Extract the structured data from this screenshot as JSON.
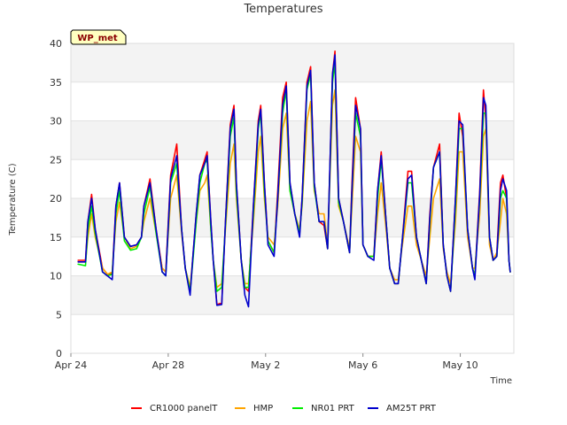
{
  "chart_data": {
    "type": "line",
    "title": "Temperatures",
    "xlabel": "Time",
    "ylabel": "Temperature (C)",
    "badge": "WP_met",
    "xlim": [
      0,
      18.2
    ],
    "ylim": [
      0,
      40
    ],
    "y_ticks": [
      0,
      5,
      10,
      15,
      20,
      25,
      30,
      35,
      40
    ],
    "x_ticks": [
      {
        "day": 0,
        "label": "Apr 24"
      },
      {
        "day": 4,
        "label": "Apr 28"
      },
      {
        "day": 8,
        "label": "May 2"
      },
      {
        "day": 12,
        "label": "May 6"
      },
      {
        "day": 16,
        "label": "May 10"
      }
    ],
    "grid": true,
    "legend_position": "bottom",
    "series": [
      {
        "name": "CR1000 panelT",
        "color": "#ff0000",
        "x": [
          0.3,
          0.6,
          0.7,
          0.85,
          1.0,
          1.3,
          1.5,
          1.7,
          1.85,
          2.0,
          2.2,
          2.45,
          2.7,
          2.9,
          3.0,
          3.25,
          3.5,
          3.75,
          3.9,
          4.1,
          4.35,
          4.55,
          4.7,
          4.9,
          5.0,
          5.15,
          5.3,
          5.5,
          5.6,
          5.75,
          5.85,
          6.0,
          6.2,
          6.35,
          6.55,
          6.7,
          6.8,
          7.0,
          7.15,
          7.3,
          7.5,
          7.7,
          7.8,
          7.95,
          8.1,
          8.35,
          8.5,
          8.7,
          8.85,
          9.0,
          9.2,
          9.4,
          9.5,
          9.7,
          9.85,
          10.0,
          10.2,
          10.4,
          10.55,
          10.75,
          10.85,
          11.0,
          11.2,
          11.45,
          11.55,
          11.7,
          11.9,
          12.0,
          12.2,
          12.45,
          12.6,
          12.75,
          12.95,
          13.1,
          13.3,
          13.45,
          13.6,
          13.85,
          14.0,
          14.2,
          14.4,
          14.6,
          14.75,
          14.9,
          15.15,
          15.3,
          15.45,
          15.6,
          15.8,
          15.95,
          16.1,
          16.3,
          16.5,
          16.6,
          16.8,
          16.95,
          17.05,
          17.2,
          17.35,
          17.5,
          17.65,
          17.75,
          17.9,
          18.0,
          18.05
        ],
        "values": [
          12,
          12,
          17,
          20.5,
          16,
          11,
          10.2,
          10.3,
          19,
          22,
          15,
          13.8,
          14,
          15,
          19,
          22.5,
          16,
          11,
          10.5,
          23,
          27,
          16,
          11,
          8,
          12,
          18,
          23,
          25,
          26,
          17,
          12,
          6.3,
          6.5,
          17,
          29.5,
          32,
          22,
          12,
          8.5,
          8,
          19,
          30,
          32,
          22,
          14.5,
          13,
          21,
          33,
          35,
          22,
          18,
          15.5,
          20,
          35,
          37,
          22,
          17,
          16.5,
          13.5,
          36,
          39,
          20,
          17,
          13,
          22,
          33,
          29,
          14,
          12.5,
          12.5,
          21,
          26,
          17,
          11,
          9,
          9,
          14,
          23.5,
          23.5,
          15,
          12,
          9,
          18,
          24,
          27,
          14,
          10,
          8,
          20,
          31,
          28,
          16,
          11,
          10,
          21,
          34,
          30,
          15,
          12,
          13,
          22,
          23,
          20,
          12,
          10.5
        ]
      },
      {
        "name": "HMP",
        "color": "#ffa500",
        "x": [
          0.3,
          0.6,
          0.7,
          0.85,
          1.0,
          1.3,
          1.5,
          1.7,
          1.85,
          2.0,
          2.2,
          2.45,
          2.7,
          2.9,
          3.0,
          3.25,
          3.5,
          3.75,
          3.9,
          4.1,
          4.35,
          4.55,
          4.7,
          4.9,
          5.0,
          5.15,
          5.3,
          5.5,
          5.6,
          5.75,
          5.85,
          6.0,
          6.2,
          6.35,
          6.55,
          6.7,
          6.8,
          7.0,
          7.15,
          7.3,
          7.5,
          7.7,
          7.8,
          7.95,
          8.1,
          8.35,
          8.5,
          8.7,
          8.85,
          9.0,
          9.2,
          9.4,
          9.5,
          9.7,
          9.85,
          10.0,
          10.2,
          10.4,
          10.55,
          10.75,
          10.85,
          11.0,
          11.2,
          11.45,
          11.55,
          11.7,
          11.9,
          12.0,
          12.2,
          12.45,
          12.6,
          12.75,
          12.95,
          13.1,
          13.3,
          13.45,
          13.6,
          13.85,
          14.0,
          14.2,
          14.4,
          14.6,
          14.75,
          14.9,
          15.15,
          15.3,
          15.45,
          15.6,
          15.8,
          15.95,
          16.1,
          16.3,
          16.5,
          16.6,
          16.8,
          16.95,
          17.05,
          17.2,
          17.35,
          17.5,
          17.65,
          17.75,
          17.9,
          18.0,
          18.05
        ],
        "values": [
          11.8,
          11.8,
          15,
          18,
          15,
          11,
          10.2,
          10.5,
          17,
          19.5,
          15,
          13.5,
          13.8,
          15,
          17,
          20,
          15.5,
          11,
          10.5,
          20,
          23,
          15.5,
          11,
          8.5,
          12,
          17,
          21,
          22,
          23,
          16,
          12,
          8.5,
          9,
          16,
          24.5,
          27,
          20,
          12,
          9,
          9,
          17,
          26,
          28,
          20,
          15,
          14,
          19,
          29,
          31,
          21,
          18,
          16,
          19,
          30,
          32.5,
          21,
          18,
          18,
          14,
          32,
          34,
          19,
          17,
          13.5,
          19,
          28,
          26,
          14,
          12.5,
          12.5,
          18,
          22,
          16,
          11,
          9.5,
          9.5,
          13.5,
          19,
          19,
          14,
          12,
          10,
          15,
          20,
          22.5,
          13.5,
          10.5,
          9,
          17,
          26,
          26,
          15,
          11,
          11,
          18,
          28,
          29,
          14,
          12,
          13,
          17,
          20,
          18,
          12,
          10.5
        ]
      },
      {
        "name": "NR01 PRT",
        "color": "#00ee00",
        "x": [
          0.3,
          0.6,
          0.7,
          0.85,
          1.0,
          1.3,
          1.5,
          1.7,
          1.85,
          2.0,
          2.2,
          2.45,
          2.7,
          2.9,
          3.0,
          3.25,
          3.5,
          3.75,
          3.9,
          4.1,
          4.35,
          4.55,
          4.7,
          4.9,
          5.0,
          5.15,
          5.3,
          5.5,
          5.6,
          5.75,
          5.85,
          6.0,
          6.2,
          6.35,
          6.55,
          6.7,
          6.8,
          7.0,
          7.15,
          7.3,
          7.5,
          7.7,
          7.8,
          7.95,
          8.1,
          8.35,
          8.5,
          8.7,
          8.85,
          9.0,
          9.2,
          9.4,
          9.5,
          9.7,
          9.85,
          10.0,
          10.2,
          10.4,
          10.55,
          10.75,
          10.85,
          11.0,
          11.2,
          11.45,
          11.55,
          11.7,
          11.9,
          12.0,
          12.2,
          12.45,
          12.6,
          12.75,
          12.95,
          13.1,
          13.3,
          13.45,
          13.6,
          13.85,
          14.0,
          14.2,
          14.4,
          14.6,
          14.75,
          14.9,
          15.15,
          15.3,
          15.45,
          15.6,
          15.8,
          15.95,
          16.1,
          16.3,
          16.5,
          16.6,
          16.8,
          16.95,
          17.05,
          17.2,
          17.35,
          17.5,
          17.65,
          17.75,
          17.9,
          18.0,
          18.05
        ],
        "values": [
          11.5,
          11.3,
          16,
          19,
          15.5,
          10.5,
          10,
          10.2,
          18,
          21,
          14.5,
          13.3,
          13.5,
          15,
          18,
          21.5,
          15.5,
          10.5,
          10,
          22,
          24.5,
          16,
          11,
          8,
          11.5,
          17,
          22,
          24.5,
          25,
          16,
          12,
          8,
          8.5,
          16.5,
          28,
          30.5,
          21,
          12,
          8.5,
          8.5,
          18,
          29,
          31,
          21,
          14.5,
          13,
          20,
          31,
          34,
          21,
          18,
          15.5,
          19.5,
          34,
          36,
          21.5,
          17,
          17,
          13.5,
          35,
          37.5,
          19.5,
          17,
          13,
          21,
          31,
          28,
          14,
          12.5,
          12.5,
          20,
          25,
          17,
          11,
          9,
          9,
          14,
          22,
          22,
          15,
          12,
          9,
          17,
          24,
          26,
          14,
          10,
          8,
          19,
          29,
          29,
          16,
          11,
          10,
          20,
          31,
          31,
          15,
          12,
          12.5,
          20,
          21,
          20,
          12,
          10.5
        ]
      },
      {
        "name": "AM25T PRT",
        "color": "#0000cd",
        "x": [
          0.3,
          0.6,
          0.7,
          0.85,
          1.0,
          1.3,
          1.5,
          1.7,
          1.85,
          2.0,
          2.2,
          2.45,
          2.7,
          2.9,
          3.0,
          3.25,
          3.5,
          3.75,
          3.9,
          4.1,
          4.35,
          4.55,
          4.7,
          4.9,
          5.0,
          5.15,
          5.3,
          5.5,
          5.6,
          5.75,
          5.85,
          6.0,
          6.2,
          6.35,
          6.55,
          6.7,
          6.8,
          7.0,
          7.15,
          7.3,
          7.5,
          7.7,
          7.8,
          7.95,
          8.1,
          8.35,
          8.5,
          8.7,
          8.85,
          9.0,
          9.2,
          9.4,
          9.5,
          9.7,
          9.85,
          10.0,
          10.2,
          10.4,
          10.55,
          10.75,
          10.85,
          11.0,
          11.2,
          11.45,
          11.55,
          11.7,
          11.9,
          12.0,
          12.2,
          12.45,
          12.6,
          12.75,
          12.95,
          13.1,
          13.3,
          13.45,
          13.6,
          13.85,
          14.0,
          14.2,
          14.4,
          14.6,
          14.75,
          14.9,
          15.15,
          15.3,
          15.45,
          15.6,
          15.8,
          15.95,
          16.1,
          16.3,
          16.5,
          16.6,
          16.8,
          16.95,
          17.05,
          17.2,
          17.35,
          17.5,
          17.65,
          17.75,
          17.9,
          18.0,
          18.05
        ],
        "values": [
          11.8,
          11.8,
          17,
          20,
          16,
          10.5,
          10,
          9.5,
          19,
          22,
          15,
          13.8,
          14,
          15,
          19,
          22,
          16,
          10.5,
          10,
          22.5,
          25.5,
          16,
          11,
          7.5,
          12,
          18,
          23,
          24.5,
          25.5,
          17,
          12,
          6.2,
          6.3,
          17,
          29,
          31.5,
          22,
          12,
          7.5,
          6,
          19,
          29.5,
          31.5,
          22,
          14,
          12.5,
          20,
          32,
          34.5,
          22,
          18,
          15,
          20,
          34.5,
          36.5,
          22,
          17,
          17,
          13.5,
          36,
          38.5,
          20,
          17,
          13,
          21,
          32,
          29,
          14,
          12.5,
          12,
          21,
          25.5,
          17,
          11,
          9,
          9,
          14,
          22.5,
          23,
          15,
          12,
          9,
          17.5,
          24,
          26,
          14,
          10,
          8,
          20,
          30,
          29.5,
          16,
          11,
          9.5,
          20.5,
          33,
          32,
          15,
          12,
          12.5,
          21,
          22.5,
          21,
          12,
          10.5
        ]
      }
    ]
  }
}
